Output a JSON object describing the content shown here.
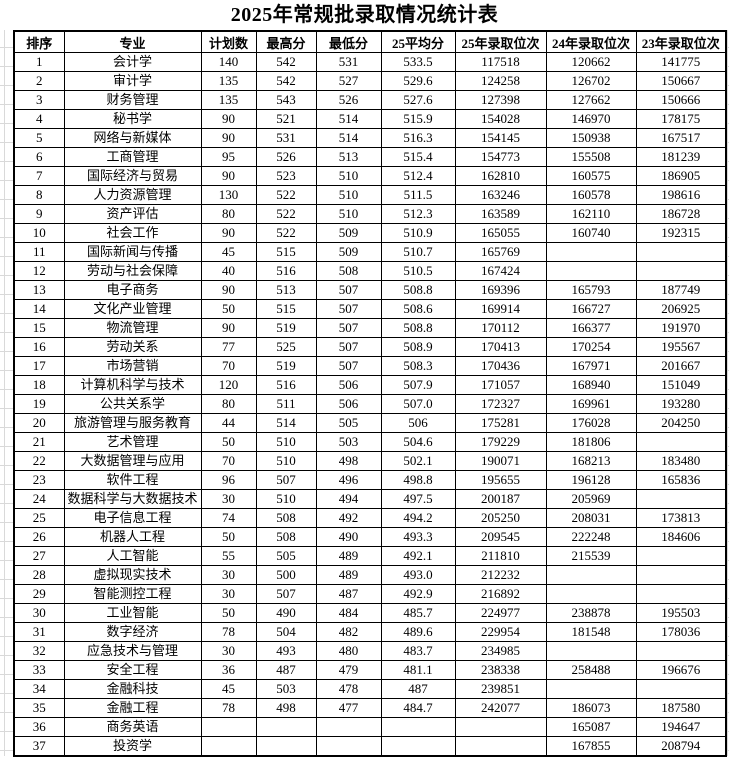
{
  "title": "2025年常规批录取情况统计表",
  "colors": {
    "border": "#000000",
    "gridline": "#d9d9d9",
    "text": "#000000",
    "background": "#ffffff"
  },
  "table": {
    "columns": [
      "排序",
      "专业",
      "计划数",
      "最高分",
      "最低分",
      "25平均分",
      "25年录取位次",
      "24年录取位次",
      "23年录取位次"
    ],
    "rows": [
      [
        "1",
        "会计学",
        "140",
        "542",
        "531",
        "533.5",
        "117518",
        "120662",
        "141775"
      ],
      [
        "2",
        "审计学",
        "135",
        "542",
        "527",
        "529.6",
        "124258",
        "126702",
        "150667"
      ],
      [
        "3",
        "财务管理",
        "135",
        "543",
        "526",
        "527.6",
        "127398",
        "127662",
        "150666"
      ],
      [
        "4",
        "秘书学",
        "90",
        "521",
        "514",
        "515.9",
        "154028",
        "146970",
        "178175"
      ],
      [
        "5",
        "网络与新媒体",
        "90",
        "531",
        "514",
        "516.3",
        "154145",
        "150938",
        "167517"
      ],
      [
        "6",
        "工商管理",
        "95",
        "526",
        "513",
        "515.4",
        "154773",
        "155508",
        "181239"
      ],
      [
        "7",
        "国际经济与贸易",
        "90",
        "523",
        "510",
        "512.4",
        "162810",
        "160575",
        "186905"
      ],
      [
        "8",
        "人力资源管理",
        "130",
        "522",
        "510",
        "511.5",
        "163246",
        "160578",
        "198616"
      ],
      [
        "9",
        "资产评估",
        "80",
        "522",
        "510",
        "512.3",
        "163589",
        "162110",
        "186728"
      ],
      [
        "10",
        "社会工作",
        "90",
        "522",
        "509",
        "510.9",
        "165055",
        "160740",
        "192315"
      ],
      [
        "11",
        "国际新闻与传播",
        "45",
        "515",
        "509",
        "510.7",
        "165769",
        "",
        ""
      ],
      [
        "12",
        "劳动与社会保障",
        "40",
        "516",
        "508",
        "510.5",
        "167424",
        "",
        ""
      ],
      [
        "13",
        "电子商务",
        "90",
        "513",
        "507",
        "508.8",
        "169396",
        "165793",
        "187749"
      ],
      [
        "14",
        "文化产业管理",
        "50",
        "515",
        "507",
        "508.6",
        "169914",
        "166727",
        "206925"
      ],
      [
        "15",
        "物流管理",
        "90",
        "519",
        "507",
        "508.8",
        "170112",
        "166377",
        "191970"
      ],
      [
        "16",
        "劳动关系",
        "77",
        "525",
        "507",
        "508.9",
        "170413",
        "170254",
        "195567"
      ],
      [
        "17",
        "市场营销",
        "70",
        "519",
        "507",
        "508.3",
        "170436",
        "167971",
        "201667"
      ],
      [
        "18",
        "计算机科学与技术",
        "120",
        "516",
        "506",
        "507.9",
        "171057",
        "168940",
        "151049"
      ],
      [
        "19",
        "公共关系学",
        "80",
        "511",
        "506",
        "507.0",
        "172327",
        "169961",
        "193280"
      ],
      [
        "20",
        "旅游管理与服务教育",
        "44",
        "514",
        "505",
        "506",
        "175281",
        "176028",
        "204250"
      ],
      [
        "21",
        "艺术管理",
        "50",
        "510",
        "503",
        "504.6",
        "179229",
        "181806",
        ""
      ],
      [
        "22",
        "大数据管理与应用",
        "70",
        "510",
        "498",
        "502.1",
        "190071",
        "168213",
        "183480"
      ],
      [
        "23",
        "软件工程",
        "96",
        "507",
        "496",
        "498.8",
        "195655",
        "196128",
        "165836"
      ],
      [
        "24",
        "数据科学与大数据技术",
        "30",
        "510",
        "494",
        "497.5",
        "200187",
        "205969",
        ""
      ],
      [
        "25",
        "电子信息工程",
        "74",
        "508",
        "492",
        "494.2",
        "205250",
        "208031",
        "173813"
      ],
      [
        "26",
        "机器人工程",
        "50",
        "508",
        "490",
        "493.3",
        "209545",
        "222248",
        "184606"
      ],
      [
        "27",
        "人工智能",
        "55",
        "505",
        "489",
        "492.1",
        "211810",
        "215539",
        ""
      ],
      [
        "28",
        "虚拟现实技术",
        "30",
        "500",
        "489",
        "493.0",
        "212232",
        "",
        ""
      ],
      [
        "29",
        "智能测控工程",
        "30",
        "507",
        "487",
        "492.9",
        "216892",
        "",
        ""
      ],
      [
        "30",
        "工业智能",
        "50",
        "490",
        "484",
        "485.7",
        "224977",
        "238878",
        "195503"
      ],
      [
        "31",
        "数字经济",
        "78",
        "504",
        "482",
        "489.6",
        "229954",
        "181548",
        "178036"
      ],
      [
        "32",
        "应急技术与管理",
        "30",
        "493",
        "480",
        "483.7",
        "234985",
        "",
        ""
      ],
      [
        "33",
        "安全工程",
        "36",
        "487",
        "479",
        "481.1",
        "238338",
        "258488",
        "196676"
      ],
      [
        "34",
        "金融科技",
        "45",
        "503",
        "478",
        "487",
        "239851",
        "",
        ""
      ],
      [
        "35",
        "金融工程",
        "78",
        "498",
        "477",
        "484.7",
        "242077",
        "186073",
        "187580"
      ],
      [
        "36",
        "商务英语",
        "",
        "",
        "",
        "",
        "",
        "165087",
        "194647"
      ],
      [
        "37",
        "投资学",
        "",
        "",
        "",
        "",
        "",
        "167855",
        "208794"
      ]
    ]
  }
}
